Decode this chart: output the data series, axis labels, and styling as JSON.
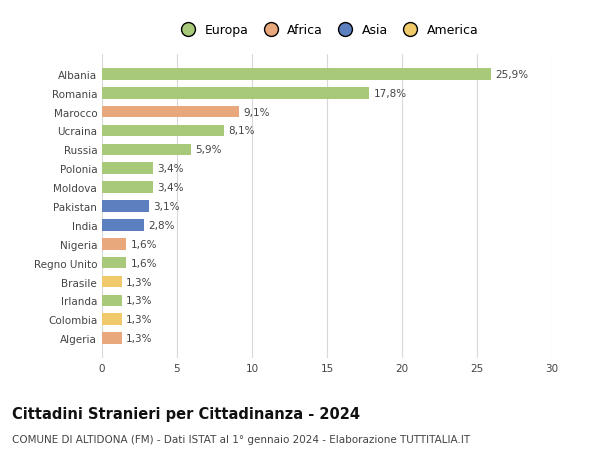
{
  "categories": [
    "Albania",
    "Romania",
    "Marocco",
    "Ucraina",
    "Russia",
    "Polonia",
    "Moldova",
    "Pakistan",
    "India",
    "Nigeria",
    "Regno Unito",
    "Brasile",
    "Irlanda",
    "Colombia",
    "Algeria"
  ],
  "values": [
    25.9,
    17.8,
    9.1,
    8.1,
    5.9,
    3.4,
    3.4,
    3.1,
    2.8,
    1.6,
    1.6,
    1.3,
    1.3,
    1.3,
    1.3
  ],
  "labels": [
    "25,9%",
    "17,8%",
    "9,1%",
    "8,1%",
    "5,9%",
    "3,4%",
    "3,4%",
    "3,1%",
    "2,8%",
    "1,6%",
    "1,6%",
    "1,3%",
    "1,3%",
    "1,3%",
    "1,3%"
  ],
  "colors": [
    "#a8c87a",
    "#a8c87a",
    "#e8a87c",
    "#a8c87a",
    "#a8c87a",
    "#a8c87a",
    "#a8c87a",
    "#5b7fbf",
    "#5b7fbf",
    "#e8a87c",
    "#a8c87a",
    "#f0c96a",
    "#a8c87a",
    "#f0c96a",
    "#e8a87c"
  ],
  "continent_names": [
    "Europa",
    "Africa",
    "Asia",
    "America"
  ],
  "continent_colors": [
    "#a8c87a",
    "#e8a87c",
    "#5b7fbf",
    "#f0c96a"
  ],
  "xlim": [
    0,
    30
  ],
  "xticks": [
    0,
    5,
    10,
    15,
    20,
    25,
    30
  ],
  "title": "Cittadini Stranieri per Cittadinanza - 2024",
  "subtitle": "COMUNE DI ALTIDONA (FM) - Dati ISTAT al 1° gennaio 2024 - Elaborazione TUTTITALIA.IT",
  "bg_color": "#ffffff",
  "grid_color": "#d8d8d8",
  "bar_height": 0.62,
  "label_fontsize": 7.5,
  "tick_fontsize": 7.5,
  "title_fontsize": 10.5,
  "subtitle_fontsize": 7.5,
  "legend_fontsize": 9.0
}
